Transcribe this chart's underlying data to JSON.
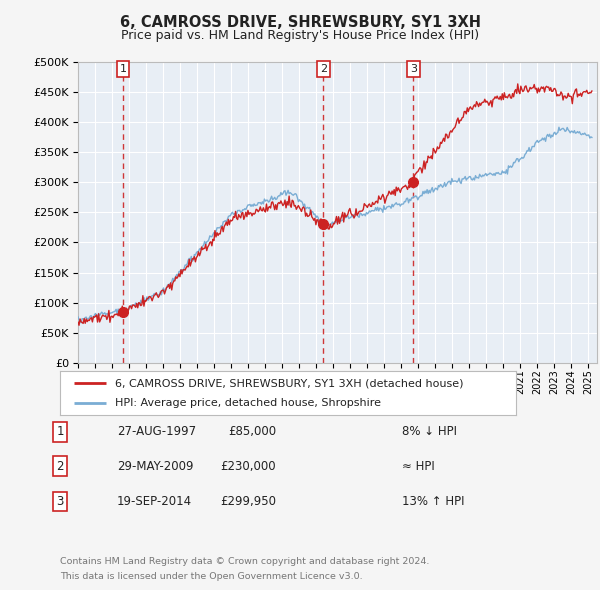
{
  "title": "6, CAMROSS DRIVE, SHREWSBURY, SY1 3XH",
  "subtitle": "Price paid vs. HM Land Registry's House Price Index (HPI)",
  "transactions": [
    {
      "num": "1",
      "date": "27-AUG-1997",
      "price": 85000,
      "year": 1997.65,
      "hpi_rel": "8% ↓ HPI"
    },
    {
      "num": "2",
      "date": "29-MAY-2009",
      "price": 230000,
      "year": 2009.41,
      "hpi_rel": "≈ HPI"
    },
    {
      "num": "3",
      "date": "19-SEP-2014",
      "price": 299950,
      "year": 2014.71,
      "hpi_rel": "13% ↑ HPI"
    }
  ],
  "legend_line1": "6, CAMROSS DRIVE, SHREWSBURY, SY1 3XH (detached house)",
  "legend_line2": "HPI: Average price, detached house, Shropshire",
  "footer1": "Contains HM Land Registry data © Crown copyright and database right 2024.",
  "footer2": "This data is licensed under the Open Government Licence v3.0.",
  "xmin": 1995,
  "xmax": 2025.5,
  "ymin": 0,
  "ymax": 500000,
  "yticks": [
    0,
    50000,
    100000,
    150000,
    200000,
    250000,
    300000,
    350000,
    400000,
    450000,
    500000
  ],
  "fig_bg": "#f5f5f5",
  "plot_bg": "#e8eef5",
  "red_color": "#cc2222",
  "blue_color": "#7aadd4",
  "grid_color": "#d0d8e0",
  "white": "#ffffff",
  "border_color": "#bbbbbb",
  "text_color": "#222222",
  "footer_color": "#777777"
}
